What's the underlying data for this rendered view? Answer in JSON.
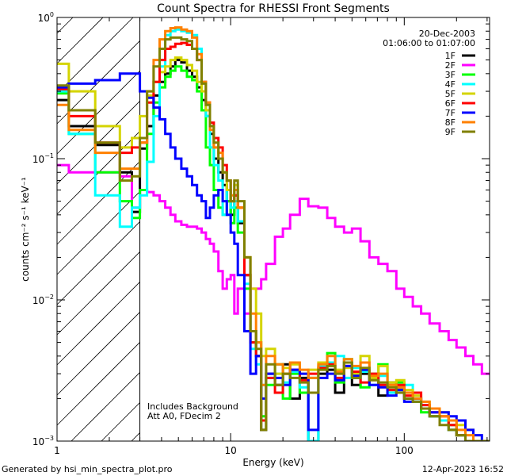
{
  "chart_data": {
    "type": "line",
    "title": "Count Spectra for RHESSI Front Segments",
    "xlabel": "Energy (keV)",
    "ylabel": "counts cm⁻² s⁻¹ keV⁻¹",
    "xscale": "log",
    "yscale": "log",
    "xlim": [
      1,
      310
    ],
    "ylim": [
      0.001,
      1
    ],
    "x_ticks": [
      {
        "value": 1,
        "label": "1"
      },
      {
        "value": 10,
        "label": "10"
      },
      {
        "value": 100,
        "label": "100"
      }
    ],
    "y_ticks": [
      {
        "value": 1,
        "base": "10",
        "exp": "0"
      },
      {
        "value": 0.1,
        "base": "10",
        "exp": "−1"
      },
      {
        "value": 0.01,
        "base": "10",
        "exp": "−2"
      },
      {
        "value": 0.001,
        "base": "10",
        "exp": "−3"
      }
    ],
    "grid": false,
    "legend_placement": "top-right",
    "date": "20-Dec-2003",
    "time_range": "01:06:00 to 01:07:00",
    "hatched_region_keV": [
      1,
      3
    ],
    "annotations": [
      "Includes Background",
      "Att A0, FDecim 2"
    ],
    "energy_bin_edges": [
      1,
      1.17,
      1.66,
      2.3,
      2.7,
      3.0,
      3.3,
      3.6,
      3.9,
      4.2,
      4.5,
      4.8,
      5.2,
      5.6,
      6.0,
      6.4,
      6.8,
      7.2,
      7.6,
      8.0,
      8.5,
      9,
      9.5,
      10,
      10.5,
      11,
      12,
      13,
      14,
      15,
      16,
      18,
      20,
      22,
      25,
      28,
      32,
      36,
      40,
      45,
      50,
      56,
      63,
      71,
      80,
      90,
      100,
      112,
      125,
      140,
      160,
      180,
      200,
      225,
      250,
      280,
      310
    ],
    "series": [
      {
        "name": "1F",
        "color": "#000000",
        "values": [
          0.26,
          0.17,
          0.125,
          0.08,
          0.042,
          0.118,
          0.17,
          0.28,
          0.35,
          0.4,
          0.45,
          0.5,
          0.48,
          0.42,
          0.38,
          0.32,
          0.26,
          0.2,
          0.15,
          0.1,
          0.08,
          0.065,
          0.05,
          0.04,
          0.055,
          0.035,
          0.015,
          0.006,
          0.004,
          0.0012,
          0.003,
          0.0025,
          0.0035,
          0.002,
          0.0028,
          0.0009,
          0.003,
          0.0032,
          0.0022,
          0.0036,
          0.0025,
          0.003,
          0.0028,
          0.0021,
          0.0026,
          0.0024,
          0.002,
          0.0019,
          0.0017,
          0.0015,
          0.0014,
          0.0012,
          0.0011,
          0.001,
          0.0009,
          0.0009
        ]
      },
      {
        "name": "2F",
        "color": "#ff00ff",
        "values": [
          0.09,
          0.08,
          0.08,
          0.075,
          0.045,
          0.06,
          0.058,
          0.055,
          0.05,
          0.045,
          0.04,
          0.036,
          0.034,
          0.033,
          0.033,
          0.032,
          0.03,
          0.027,
          0.025,
          0.022,
          0.016,
          0.012,
          0.014,
          0.015,
          0.008,
          0.012,
          0.008,
          0.012,
          0.012,
          0.014,
          0.018,
          0.028,
          0.032,
          0.04,
          0.052,
          0.046,
          0.045,
          0.038,
          0.033,
          0.03,
          0.032,
          0.026,
          0.02,
          0.018,
          0.016,
          0.012,
          0.0105,
          0.009,
          0.008,
          0.0068,
          0.006,
          0.0052,
          0.0046,
          0.004,
          0.0035,
          0.003
        ]
      },
      {
        "name": "3F",
        "color": "#00ff00",
        "values": [
          0.29,
          0.15,
          0.08,
          0.05,
          0.038,
          0.06,
          0.15,
          0.25,
          0.32,
          0.38,
          0.42,
          0.45,
          0.42,
          0.38,
          0.36,
          0.3,
          0.22,
          0.12,
          0.09,
          0.06,
          0.045,
          0.04,
          0.05,
          0.035,
          0.045,
          0.03,
          0.012,
          0.005,
          0.005,
          0.0015,
          0.0025,
          0.0035,
          0.002,
          0.003,
          0.0022,
          0.0028,
          0.0033,
          0.0042,
          0.0026,
          0.0038,
          0.0028,
          0.0024,
          0.003,
          0.0035,
          0.0023,
          0.0026,
          0.0022,
          0.002,
          0.0016,
          0.0017,
          0.0014,
          0.0013,
          0.0011,
          0.001,
          0.0009,
          0.0008
        ]
      },
      {
        "name": "4F",
        "color": "#00ffff",
        "values": [
          0.3,
          0.15,
          0.055,
          0.033,
          0.045,
          0.055,
          0.095,
          0.2,
          0.45,
          0.75,
          0.8,
          0.82,
          0.8,
          0.78,
          0.75,
          0.6,
          0.35,
          0.2,
          0.12,
          0.09,
          0.07,
          0.04,
          0.06,
          0.045,
          0.05,
          0.036,
          0.013,
          0.0045,
          0.0035,
          0.0025,
          0.0028,
          0.003,
          0.0026,
          0.0031,
          0.0024,
          0.0009,
          0.0034,
          0.0036,
          0.004,
          0.0028,
          0.0033,
          0.0031,
          0.0025,
          0.0029,
          0.0022,
          0.0023,
          0.0025,
          0.0019,
          0.0018,
          0.0015,
          0.0014,
          0.0012,
          0.0011,
          0.001,
          0.0009,
          0.0008
        ]
      },
      {
        "name": "5F",
        "color": "#d4d400",
        "values": [
          0.47,
          0.3,
          0.17,
          0.12,
          0.14,
          0.2,
          0.28,
          0.35,
          0.41,
          0.45,
          0.5,
          0.52,
          0.5,
          0.46,
          0.42,
          0.35,
          0.3,
          0.22,
          0.17,
          0.12,
          0.1,
          0.08,
          0.06,
          0.05,
          0.065,
          0.045,
          0.02,
          0.012,
          0.008,
          0.004,
          0.0045,
          0.003,
          0.0033,
          0.0035,
          0.003,
          0.0032,
          0.0036,
          0.0034,
          0.0032,
          0.0033,
          0.003,
          0.004,
          0.0028,
          0.0034,
          0.0026,
          0.0027,
          0.0023,
          0.0021,
          0.0019,
          0.0017,
          0.0016,
          0.0014,
          0.0013,
          0.0012,
          0.001,
          0.0009
        ]
      },
      {
        "name": "6F",
        "color": "#ff0000",
        "values": [
          0.31,
          0.2,
          0.13,
          0.11,
          0.12,
          0.13,
          0.25,
          0.35,
          0.5,
          0.6,
          0.62,
          0.65,
          0.66,
          0.64,
          0.6,
          0.5,
          0.35,
          0.25,
          0.18,
          0.14,
          0.12,
          0.09,
          0.07,
          0.05,
          0.055,
          0.045,
          0.015,
          0.005,
          0.004,
          0.0014,
          0.0028,
          0.0022,
          0.003,
          0.0032,
          0.0027,
          0.003,
          0.0033,
          0.0035,
          0.0028,
          0.0034,
          0.0031,
          0.0026,
          0.003,
          0.0025,
          0.0023,
          0.0025,
          0.0021,
          0.0022,
          0.0018,
          0.0016,
          0.0015,
          0.0013,
          0.0011,
          0.001,
          0.0009,
          0.0009
        ]
      },
      {
        "name": "7F",
        "color": "#0000ff",
        "values": [
          0.32,
          0.34,
          0.36,
          0.4,
          0.4,
          0.3,
          0.27,
          0.23,
          0.19,
          0.15,
          0.12,
          0.1,
          0.085,
          0.075,
          0.065,
          0.055,
          0.05,
          0.038,
          0.045,
          0.055,
          0.06,
          0.05,
          0.04,
          0.03,
          0.025,
          0.015,
          0.006,
          0.003,
          0.004,
          0.002,
          0.003,
          0.0028,
          0.0025,
          0.0032,
          0.003,
          0.0012,
          0.0028,
          0.003,
          0.0027,
          0.0034,
          0.0029,
          0.0032,
          0.0025,
          0.0024,
          0.0021,
          0.0023,
          0.0019,
          0.002,
          0.0017,
          0.0016,
          0.0016,
          0.0015,
          0.0014,
          0.0012,
          0.0011,
          0.0009
        ]
      },
      {
        "name": "8F",
        "color": "#ff8000",
        "values": [
          0.24,
          0.16,
          0.11,
          0.085,
          0.085,
          0.13,
          0.3,
          0.5,
          0.7,
          0.8,
          0.84,
          0.85,
          0.82,
          0.8,
          0.72,
          0.55,
          0.35,
          0.25,
          0.16,
          0.12,
          0.11,
          0.08,
          0.07,
          0.055,
          0.06,
          0.045,
          0.02,
          0.008,
          0.005,
          0.0025,
          0.004,
          0.0035,
          0.003,
          0.0036,
          0.0032,
          0.0028,
          0.0035,
          0.004,
          0.0031,
          0.0038,
          0.0034,
          0.0036,
          0.0029,
          0.003,
          0.0025,
          0.0024,
          0.0022,
          0.002,
          0.0019,
          0.0017,
          0.0015,
          0.0014,
          0.0012,
          0.0011,
          0.001,
          0.0009
        ]
      },
      {
        "name": "9F",
        "color": "#808000",
        "values": [
          0.33,
          0.22,
          0.13,
          0.07,
          0.075,
          0.14,
          0.3,
          0.45,
          0.6,
          0.7,
          0.72,
          0.72,
          0.7,
          0.68,
          0.6,
          0.5,
          0.34,
          0.24,
          0.17,
          0.13,
          0.1,
          0.08,
          0.07,
          0.05,
          0.07,
          0.05,
          0.02,
          0.006,
          0.0045,
          0.0012,
          0.0035,
          0.0025,
          0.003,
          0.0028,
          0.0026,
          0.0022,
          0.0032,
          0.0034,
          0.003,
          0.0036,
          0.0028,
          0.0033,
          0.0027,
          0.0026,
          0.0024,
          0.0022,
          0.002,
          0.0019,
          0.0017,
          0.0015,
          0.0013,
          0.0012,
          0.0011,
          0.001,
          0.0009,
          0.0009
        ]
      }
    ]
  },
  "footer": {
    "generated_by": "Generated by hsi_min_spectra_plot.pro",
    "timestamp": "12-Apr-2023 16:52"
  }
}
